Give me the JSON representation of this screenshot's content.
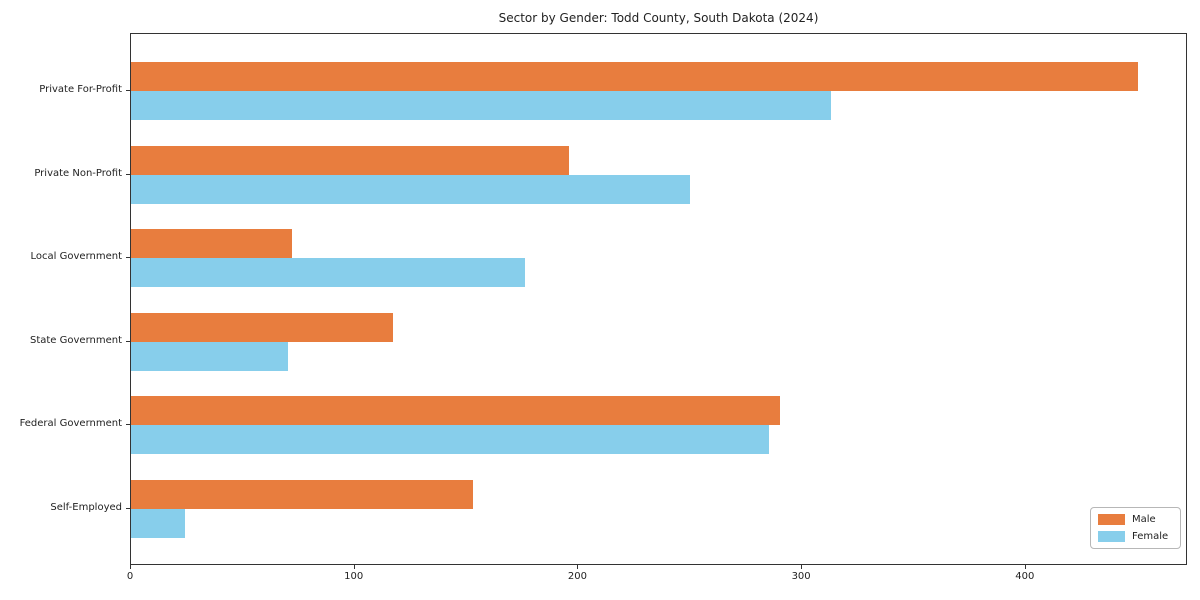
{
  "title": "Sector by Gender: Todd County, South Dakota (2024)",
  "chart_data": {
    "type": "bar",
    "orientation": "horizontal",
    "title": "Sector by Gender: Todd County, South Dakota (2024)",
    "categories": [
      "Private For-Profit",
      "Private Non-Profit",
      "Local Government",
      "State Government",
      "Federal Government",
      "Self-Employed"
    ],
    "series": [
      {
        "name": "Male",
        "color": "#e87d3e",
        "values": [
          450,
          196,
          72,
          117,
          290,
          153
        ]
      },
      {
        "name": "Female",
        "color": "#87ceeb",
        "values": [
          313,
          250,
          176,
          70,
          285,
          24
        ]
      }
    ],
    "xlabel": "",
    "ylabel": "",
    "xlim": [
      0,
      472.5
    ],
    "xticks": [
      0,
      100,
      200,
      300,
      400
    ],
    "grid": false,
    "legend_position": "lower right",
    "legend_entries": [
      "Male",
      "Female"
    ]
  }
}
